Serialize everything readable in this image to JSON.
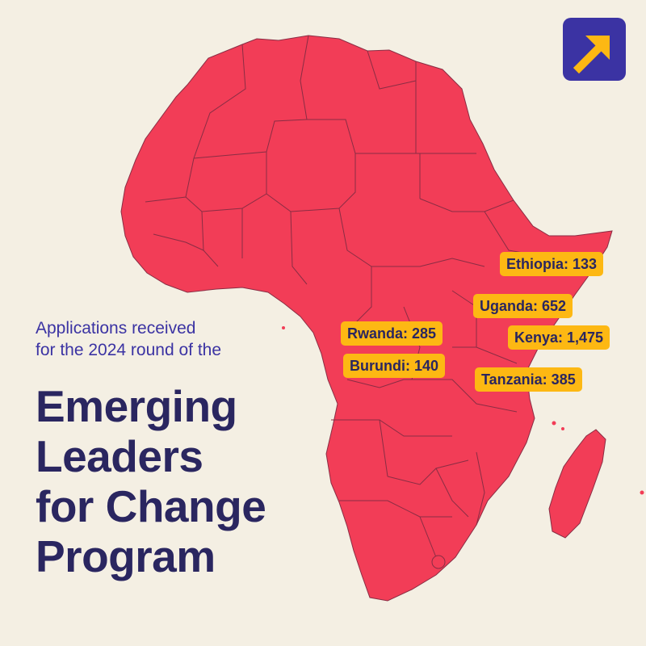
{
  "colors": {
    "background": "#f4efe3",
    "map_fill": "#f23d57",
    "border_lines": "#8a2d44",
    "label_fill": "#fdb813",
    "title_text": "#2a2660",
    "subtitle_text": "#3b33a3",
    "logo_bg": "#3b33a3",
    "logo_arrow": "#fdb813"
  },
  "logo": {
    "icon": "arrow-up-right-icon"
  },
  "subtitle": {
    "line1": "Applications received",
    "line2": "for the 2024 round of the"
  },
  "title": {
    "line1": "Emerging",
    "line2": "Leaders",
    "line3": "for Change",
    "line4": "Program"
  },
  "labels": {
    "ethiopia": "Ethiopia: 133",
    "uganda": "Uganda: 652",
    "rwanda": "Rwanda: 285",
    "kenya": "Kenya: 1,475",
    "burundi": "Burundi: 140",
    "tanzania": "Tanzania: 385"
  },
  "applications": [
    {
      "country": "Ethiopia",
      "count": 133
    },
    {
      "country": "Uganda",
      "count": 652
    },
    {
      "country": "Rwanda",
      "count": 285
    },
    {
      "country": "Kenya",
      "count": 1475
    },
    {
      "country": "Burundi",
      "count": 140
    },
    {
      "country": "Tanzania",
      "count": 385
    }
  ]
}
